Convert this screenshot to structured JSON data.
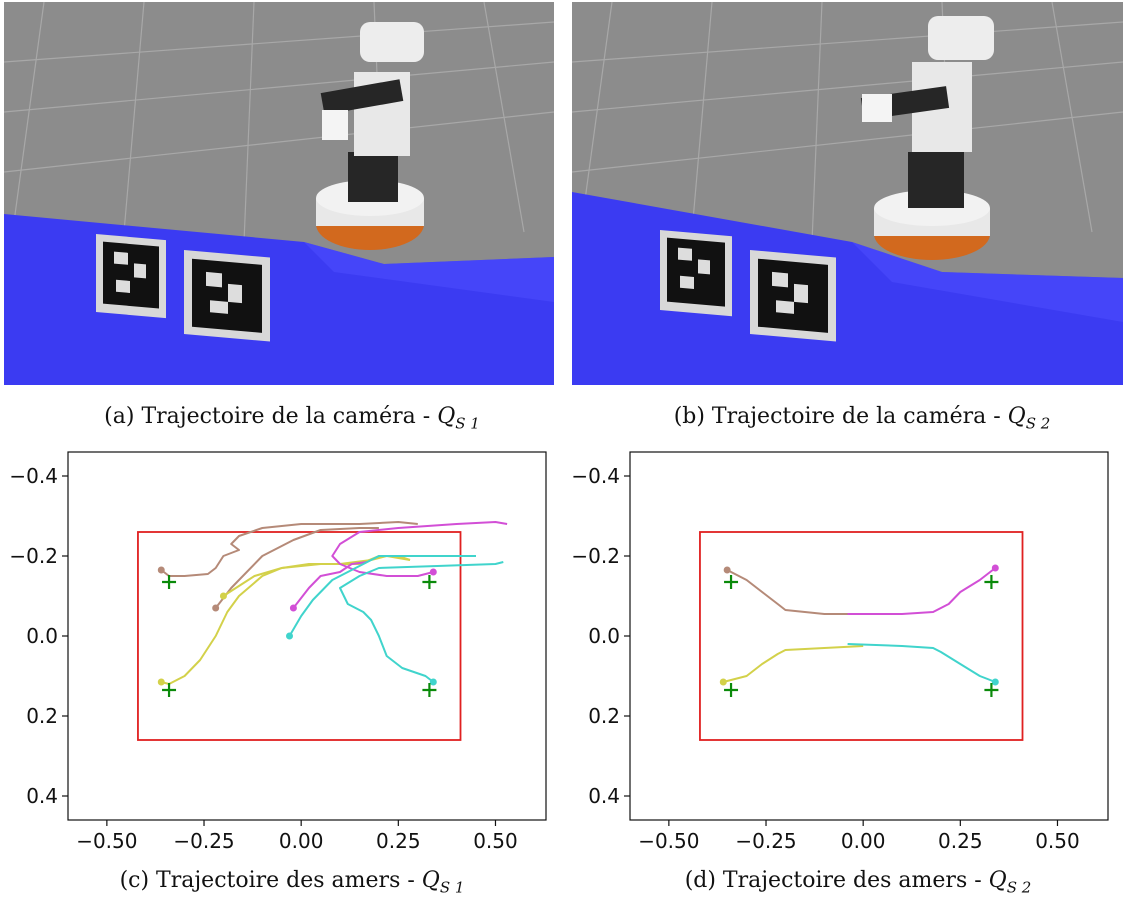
{
  "figure_captions": [
    {
      "label": "(a) Trajectoire de la caméra - ",
      "symbol": "Q",
      "sub": "S 1"
    },
    {
      "label": "(b) Trajectoire de la caméra - ",
      "symbol": "Q",
      "sub": "S 2"
    },
    {
      "label": "(c) Trajectoire des amers - ",
      "symbol": "Q",
      "sub": "S 1"
    },
    {
      "label": "(d) Trajectoire des amers - ",
      "symbol": "Q",
      "sub": "S 2"
    }
  ],
  "colors": {
    "floor": "#8a8a8a",
    "blue_plane": "#3b3bf2",
    "robot_white": "#e8e8e8",
    "robot_dark": "#262626",
    "robot_orange": "#d2691e",
    "image_bounds": "#e02020",
    "target": "#0a8a0a",
    "series": [
      "#b58a78",
      "#d3d14a",
      "#d24fd6",
      "#40d4cc"
    ]
  },
  "chart_data": [
    {
      "type": "line",
      "xlim": [
        -0.6,
        0.63
      ],
      "ylim": [
        0.46,
        -0.46
      ],
      "xticks": [
        "−0.50",
        "−0.25",
        "0.00",
        "0.25",
        "0.50"
      ],
      "xtick_values": [
        -0.5,
        -0.25,
        0.0,
        0.25,
        0.5
      ],
      "yticks": [
        "−0.4",
        "−0.2",
        "0.0",
        "0.2",
        "0.4"
      ],
      "ytick_values": [
        -0.4,
        -0.2,
        0.0,
        0.2,
        0.4
      ],
      "image_bounds": {
        "x": [
          -0.42,
          0.41
        ],
        "y": [
          -0.26,
          0.26
        ]
      },
      "targets": [
        [
          -0.34,
          -0.135
        ],
        [
          0.33,
          -0.135
        ],
        [
          -0.34,
          0.135
        ],
        [
          0.33,
          0.135
        ]
      ],
      "series": [
        {
          "points": [
            [
              -0.36,
              -0.165
            ],
            [
              -0.34,
              -0.15
            ],
            [
              -0.3,
              -0.15
            ],
            [
              -0.24,
              -0.155
            ],
            [
              -0.22,
              -0.17
            ],
            [
              -0.2,
              -0.2
            ],
            [
              -0.16,
              -0.215
            ],
            [
              -0.18,
              -0.23
            ],
            [
              -0.16,
              -0.25
            ],
            [
              -0.1,
              -0.27
            ],
            [
              0.0,
              -0.28
            ],
            [
              0.15,
              -0.28
            ],
            [
              0.25,
              -0.285
            ],
            [
              0.3,
              -0.28
            ]
          ]
        },
        {
          "points": [
            [
              -0.22,
              -0.07
            ],
            [
              -0.18,
              -0.12
            ],
            [
              -0.1,
              -0.2
            ],
            [
              -0.02,
              -0.24
            ],
            [
              0.05,
              -0.265
            ],
            [
              0.15,
              -0.27
            ],
            [
              0.2,
              -0.27
            ]
          ]
        },
        {
          "points": [
            [
              -0.36,
              0.115
            ],
            [
              -0.34,
              0.12
            ],
            [
              -0.3,
              0.1
            ],
            [
              -0.26,
              0.06
            ],
            [
              -0.22,
              0.0
            ],
            [
              -0.19,
              -0.06
            ],
            [
              -0.16,
              -0.1
            ],
            [
              -0.1,
              -0.15
            ],
            [
              -0.05,
              -0.17
            ],
            [
              0.05,
              -0.18
            ],
            [
              0.15,
              -0.18
            ],
            [
              0.2,
              -0.2
            ],
            [
              0.25,
              -0.2
            ],
            [
              0.28,
              -0.19
            ]
          ]
        },
        {
          "points": [
            [
              -0.2,
              -0.1
            ],
            [
              -0.12,
              -0.15
            ],
            [
              -0.05,
              -0.17
            ],
            [
              0.02,
              -0.18
            ],
            [
              0.1,
              -0.18
            ],
            [
              0.18,
              -0.19
            ],
            [
              0.22,
              -0.2
            ],
            [
              0.28,
              -0.19
            ]
          ]
        },
        {
          "points": [
            [
              0.34,
              -0.16
            ],
            [
              0.3,
              -0.15
            ],
            [
              0.22,
              -0.15
            ],
            [
              0.15,
              -0.16
            ],
            [
              0.1,
              -0.18
            ],
            [
              0.08,
              -0.2
            ],
            [
              0.1,
              -0.23
            ],
            [
              0.15,
              -0.26
            ],
            [
              0.25,
              -0.27
            ],
            [
              0.4,
              -0.28
            ],
            [
              0.5,
              -0.285
            ],
            [
              0.53,
              -0.28
            ]
          ]
        },
        {
          "points": [
            [
              -0.02,
              -0.07
            ],
            [
              0.02,
              -0.12
            ],
            [
              0.05,
              -0.15
            ],
            [
              0.1,
              -0.16
            ],
            [
              0.13,
              -0.18
            ],
            [
              0.17,
              -0.185
            ]
          ]
        },
        {
          "points": [
            [
              0.34,
              0.115
            ],
            [
              0.32,
              0.1
            ],
            [
              0.26,
              0.08
            ],
            [
              0.22,
              0.05
            ],
            [
              0.2,
              0.0
            ],
            [
              0.18,
              -0.04
            ],
            [
              0.16,
              -0.06
            ],
            [
              0.12,
              -0.08
            ],
            [
              0.1,
              -0.12
            ],
            [
              0.15,
              -0.15
            ],
            [
              0.2,
              -0.17
            ],
            [
              0.35,
              -0.175
            ],
            [
              0.5,
              -0.18
            ],
            [
              0.52,
              -0.185
            ]
          ]
        },
        {
          "points": [
            [
              -0.03,
              0.0
            ],
            [
              0.0,
              -0.05
            ],
            [
              0.03,
              -0.09
            ],
            [
              0.08,
              -0.14
            ],
            [
              0.12,
              -0.16
            ],
            [
              0.2,
              -0.2
            ],
            [
              0.3,
              -0.2
            ],
            [
              0.4,
              -0.2
            ],
            [
              0.45,
              -0.2
            ]
          ]
        }
      ],
      "series_colors": [
        0,
        0,
        1,
        1,
        2,
        2,
        3,
        3
      ]
    },
    {
      "type": "line",
      "xlim": [
        -0.6,
        0.63
      ],
      "ylim": [
        0.46,
        -0.46
      ],
      "xticks": [
        "−0.50",
        "−0.25",
        "0.00",
        "0.25",
        "0.50"
      ],
      "xtick_values": [
        -0.5,
        -0.25,
        0.0,
        0.25,
        0.5
      ],
      "yticks": [
        "−0.4",
        "−0.2",
        "0.0",
        "0.2",
        "0.4"
      ],
      "ytick_values": [
        -0.4,
        -0.2,
        0.0,
        0.2,
        0.4
      ],
      "image_bounds": {
        "x": [
          -0.42,
          0.41
        ],
        "y": [
          -0.26,
          0.26
        ]
      },
      "targets": [
        [
          -0.34,
          -0.135
        ],
        [
          0.33,
          -0.135
        ],
        [
          -0.34,
          0.135
        ],
        [
          0.33,
          0.135
        ]
      ],
      "series": [
        {
          "points": [
            [
              -0.35,
              -0.165
            ],
            [
              -0.3,
              -0.14
            ],
            [
              -0.26,
              -0.11
            ],
            [
              -0.22,
              -0.08
            ],
            [
              -0.2,
              -0.065
            ],
            [
              -0.1,
              -0.055
            ],
            [
              -0.03,
              -0.055
            ]
          ]
        },
        {
          "points": [
            [
              -0.36,
              0.115
            ],
            [
              -0.3,
              0.1
            ],
            [
              -0.26,
              0.07
            ],
            [
              -0.22,
              0.045
            ],
            [
              -0.2,
              0.035
            ],
            [
              -0.1,
              0.03
            ],
            [
              0.0,
              0.025
            ]
          ]
        },
        {
          "points": [
            [
              0.34,
              -0.17
            ],
            [
              0.3,
              -0.14
            ],
            [
              0.25,
              -0.11
            ],
            [
              0.22,
              -0.08
            ],
            [
              0.18,
              -0.06
            ],
            [
              0.1,
              -0.055
            ],
            [
              -0.04,
              -0.055
            ]
          ]
        },
        {
          "points": [
            [
              0.34,
              0.115
            ],
            [
              0.3,
              0.1
            ],
            [
              0.25,
              0.07
            ],
            [
              0.2,
              0.04
            ],
            [
              0.18,
              0.03
            ],
            [
              0.1,
              0.025
            ],
            [
              -0.04,
              0.02
            ]
          ]
        }
      ],
      "series_colors": [
        0,
        1,
        2,
        3
      ]
    }
  ]
}
